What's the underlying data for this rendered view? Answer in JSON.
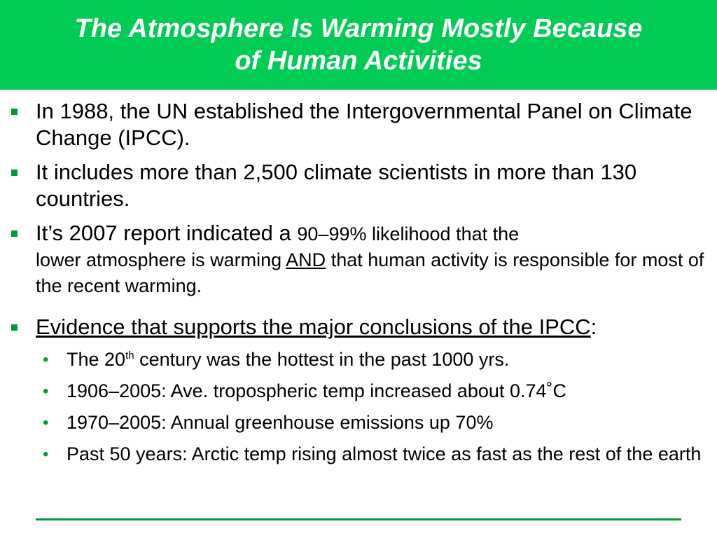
{
  "title": {
    "line1": "The Atmosphere Is Warming Mostly Because",
    "line2": "of Human Activities"
  },
  "bullets": [
    {
      "text": "In 1988, the UN established the Intergovernmental Panel on Climate Change (IPCC)."
    },
    {
      "text": "It includes more than 2,500 climate scientists in more than 130 countries."
    },
    {
      "lead": "It’s 2007 report indicated a",
      "mid": "90–99% likelihood that the",
      "cont1": "lower atmosphere is warming",
      "underlined": "AND",
      "cont2": "that human activity is responsible for most of the recent warming."
    },
    {
      "underlined": "Evidence that supports the major conclusions of the IPCC",
      "suffix": ":"
    }
  ],
  "sub_bullets": [
    {
      "pre": "The 20",
      "sup": "th",
      "post": "century was the hottest in the past 1000 yrs."
    },
    {
      "text": "1906–2005: Ave. tropospheric temp increased about 0.74˚C"
    },
    {
      "text": "1970–2005: Annual greenhouse emissions up 70%"
    },
    {
      "text": "Past 50 years: Arctic temp rising almost twice as fast as the rest of the earth"
    }
  ],
  "colors": {
    "title_bar": "#00cc55",
    "title_text": "#ffffff",
    "bullet_marker": "#009933",
    "rule": "#009933"
  },
  "icons": {
    "level1_marker": "square-bullet",
    "level2_marker": "dot-bullet"
  }
}
